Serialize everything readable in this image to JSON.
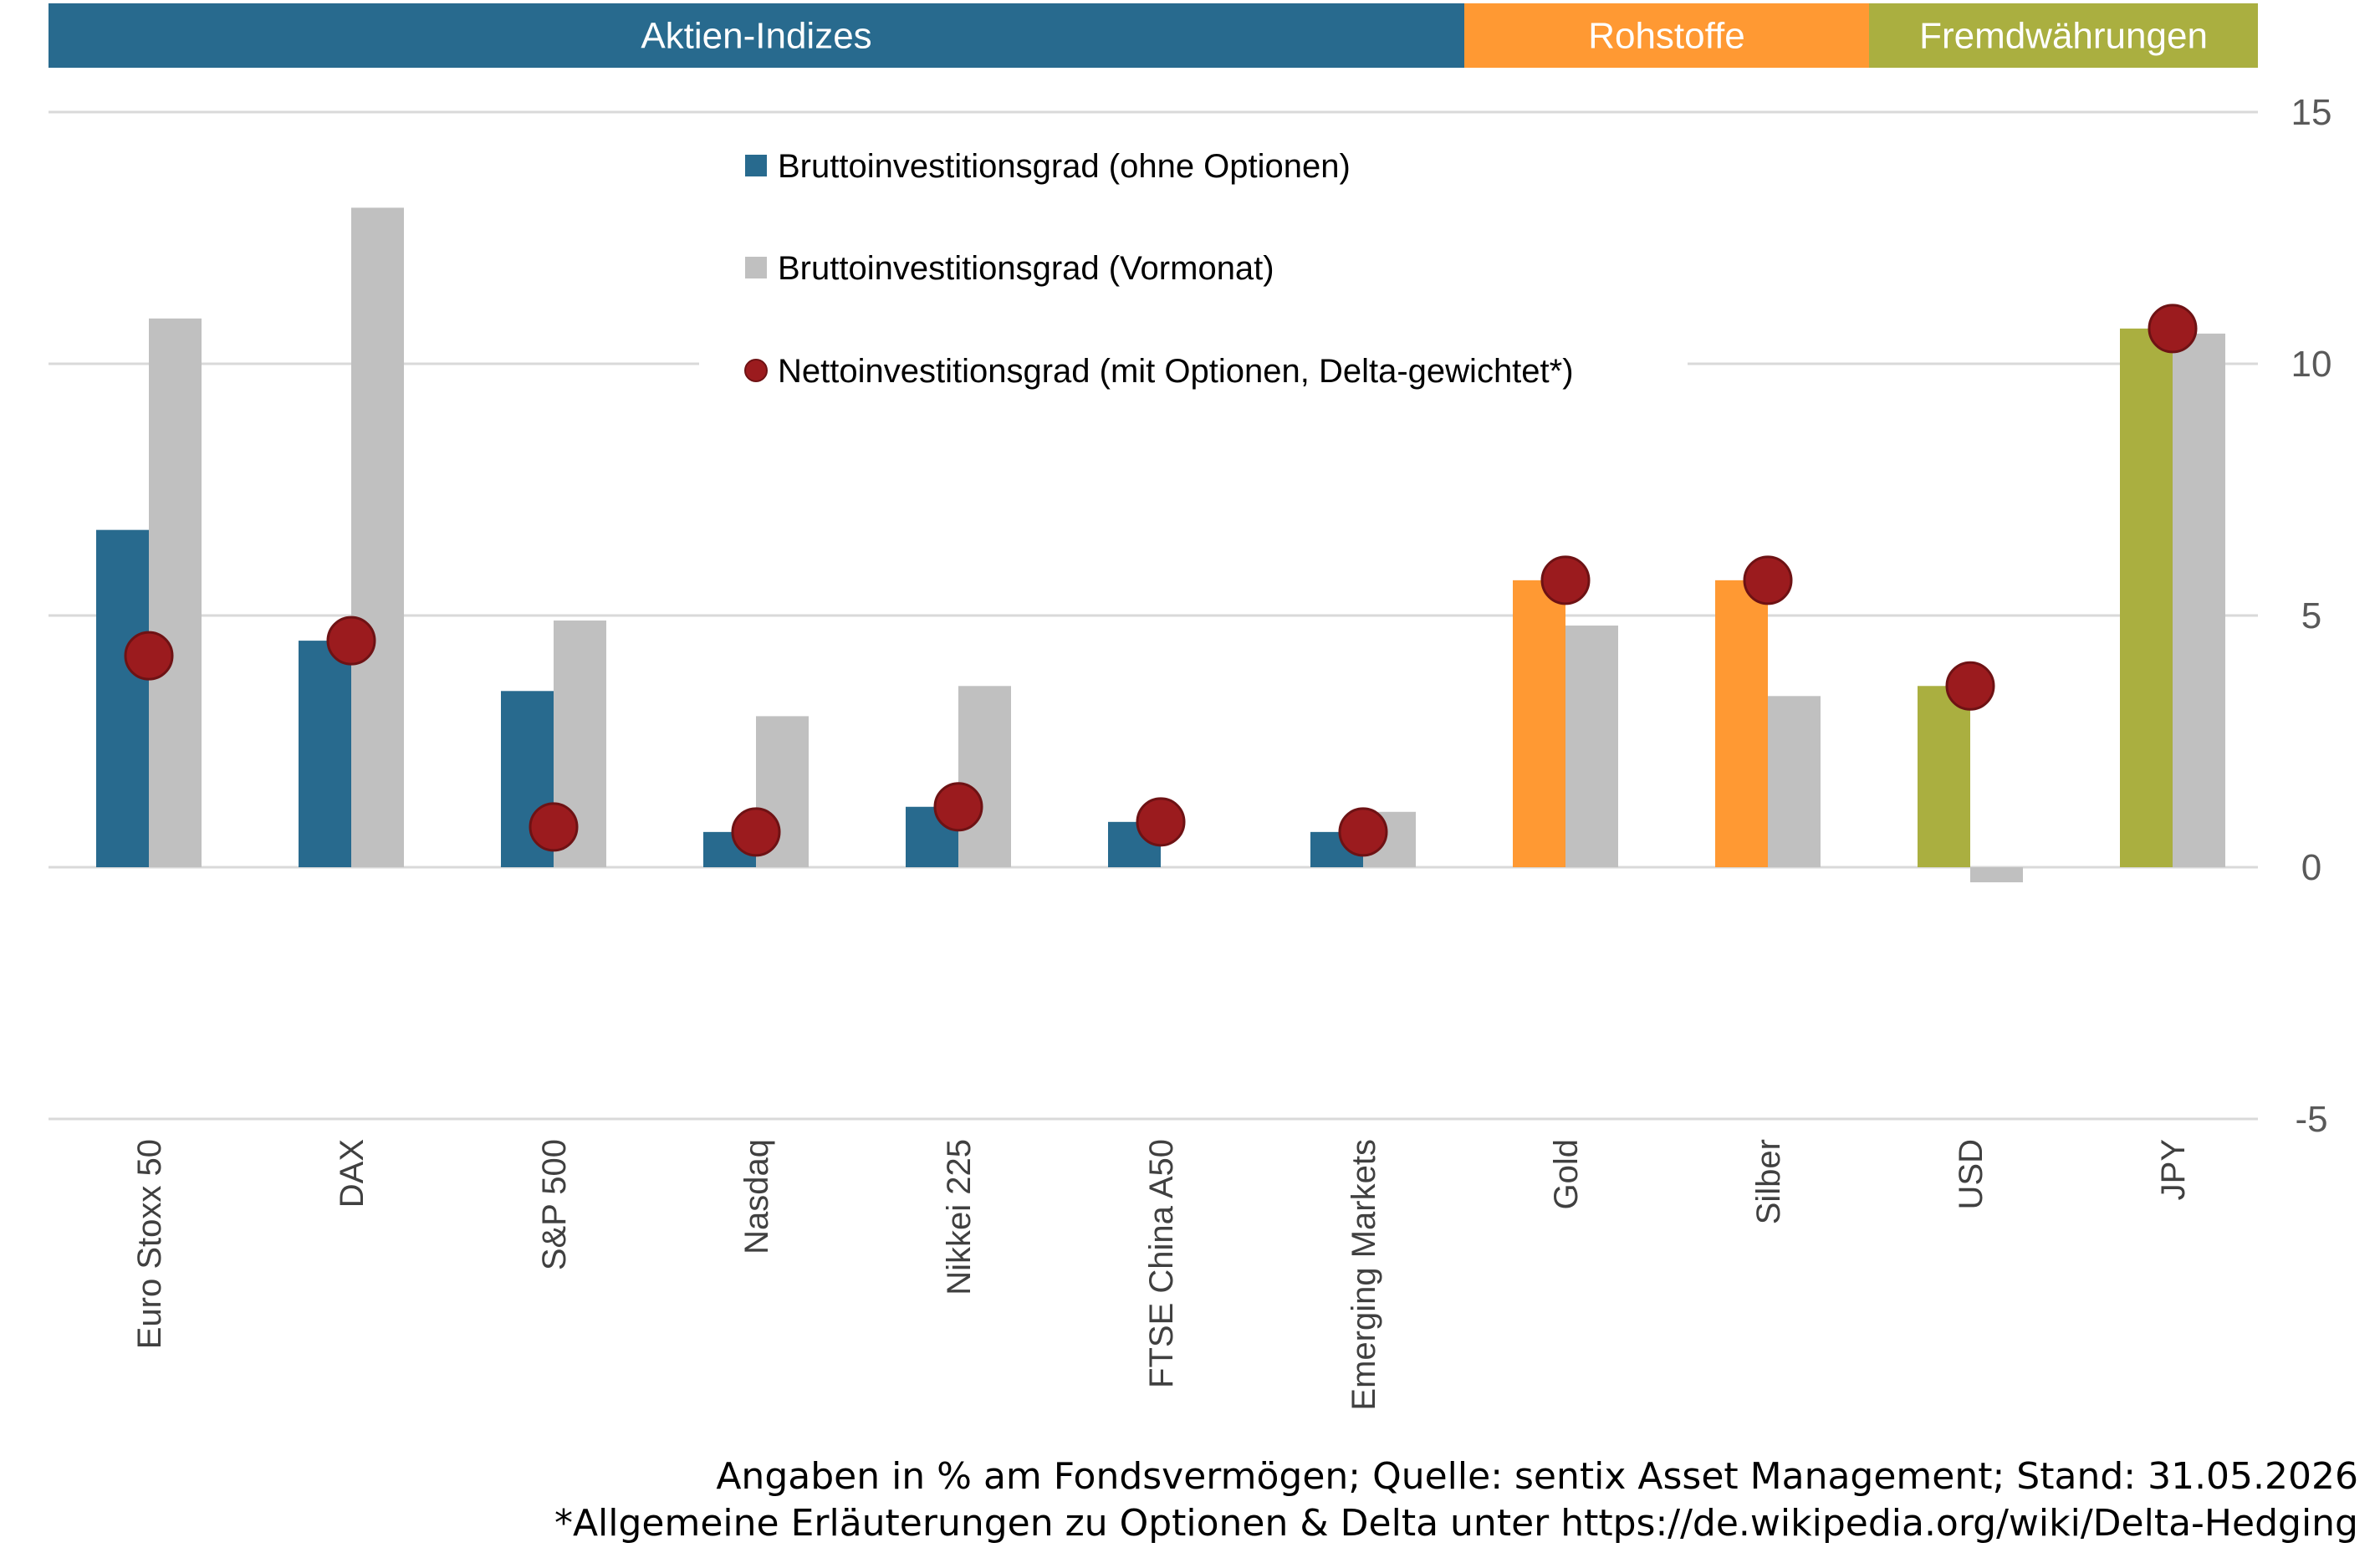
{
  "groups": [
    {
      "label": "Aktien-Indizes",
      "color": "#286A8E",
      "from": 0,
      "to": 6
    },
    {
      "label": "Rohstoffe",
      "color": "#FF9933",
      "from": 7,
      "to": 8
    },
    {
      "label": "Fremdwährungen",
      "color": "#AAAF40",
      "from": 9,
      "to": 10
    }
  ],
  "colors": {
    "previous": "#C0C0C0",
    "net_fill": "#9B1B1E",
    "net_stroke": "#6E1214",
    "grid": "#D9D9D9"
  },
  "footnotes": {
    "line1": "Angaben in % am Fondsvermögen; Quelle: sentix Asset Management; Stand: 31.05.2026",
    "line2": "*Allgemeine Erläuterungen zu Optionen & Delta unter https://de.wikipedia.org/wiki/Delta-Hedging"
  },
  "chart_data": {
    "type": "bar",
    "categories": [
      "Euro Stoxx 50",
      "DAX",
      "S&P 500",
      "Nasdaq",
      "Nikkei 225",
      "FTSE China A50",
      "Emerging Markets",
      "Gold",
      "Silber",
      "USD",
      "JPY"
    ],
    "category_colors": [
      "#286A8E",
      "#286A8E",
      "#286A8E",
      "#286A8E",
      "#286A8E",
      "#286A8E",
      "#286A8E",
      "#FF9933",
      "#FF9933",
      "#AAAF40",
      "#AAAF40"
    ],
    "series": [
      {
        "name": "Bruttoinvestitionsgrad (ohne Optionen)",
        "kind": "bar",
        "values": [
          6.7,
          4.5,
          3.5,
          0.7,
          1.2,
          0.9,
          0.7,
          5.7,
          5.7,
          3.6,
          10.7
        ]
      },
      {
        "name": "Bruttoinvestitionsgrad (Vormonat)",
        "kind": "bar",
        "values": [
          10.9,
          13.1,
          4.9,
          3.0,
          3.6,
          0.0,
          1.1,
          4.8,
          3.4,
          -0.3,
          10.6
        ]
      },
      {
        "name": "Nettoinvestitionsgrad (mit Optionen, Delta-gewichtet*)",
        "kind": "marker",
        "values": [
          4.2,
          4.5,
          0.8,
          0.7,
          1.2,
          0.9,
          0.7,
          5.7,
          5.7,
          3.6,
          10.7
        ]
      }
    ],
    "ylim": [
      -5,
      15
    ],
    "yticks": [
      "15",
      "10",
      "5",
      "0",
      "-5"
    ],
    "ytick_values": [
      15,
      10,
      5,
      0,
      -5
    ],
    "y_axis_side": "right",
    "grid": true,
    "legend_position": "top-center"
  }
}
